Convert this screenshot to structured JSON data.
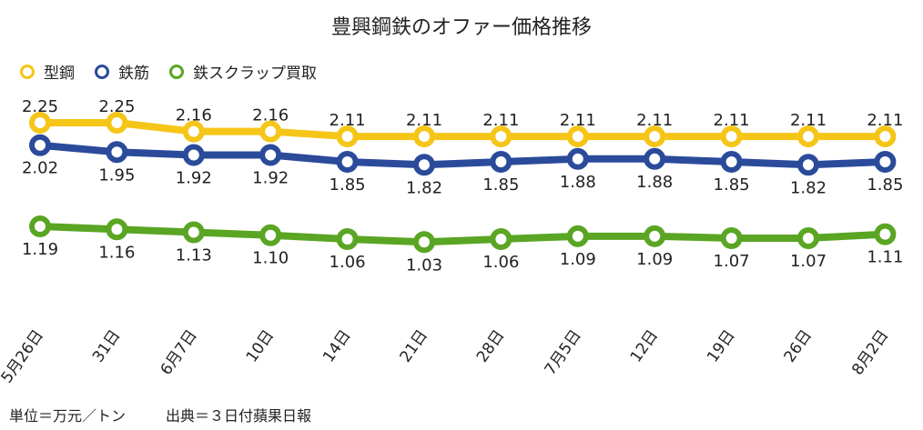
{
  "chart_data": {
    "type": "line",
    "title": "豊興鋼鉄のオファー価格推移",
    "categories": [
      "5月26日",
      "31日",
      "6月7日",
      "10日",
      "14日",
      "21日",
      "28日",
      "7月5日",
      "12日",
      "19日",
      "26日",
      "8月2日"
    ],
    "series": [
      {
        "name": "型鋼",
        "color": "#f5c518",
        "values": [
          2.25,
          2.25,
          2.16,
          2.16,
          2.11,
          2.11,
          2.11,
          2.11,
          2.11,
          2.11,
          2.11,
          2.11
        ]
      },
      {
        "name": "鉄筋",
        "color": "#2b4a9a",
        "values": [
          2.02,
          1.95,
          1.92,
          1.92,
          1.85,
          1.82,
          1.85,
          1.88,
          1.88,
          1.85,
          1.82,
          1.85
        ]
      },
      {
        "name": "鉄スクラップ買取",
        "color": "#5aa523",
        "values": [
          1.19,
          1.16,
          1.13,
          1.1,
          1.06,
          1.03,
          1.06,
          1.09,
          1.09,
          1.07,
          1.07,
          1.11
        ]
      }
    ],
    "legend": "top-left",
    "grid": false,
    "ylim": [
      0.5,
      2.6
    ]
  },
  "notes": {
    "unit": "単位＝万元／トン",
    "source": "出典＝３日付蘋果日報"
  }
}
